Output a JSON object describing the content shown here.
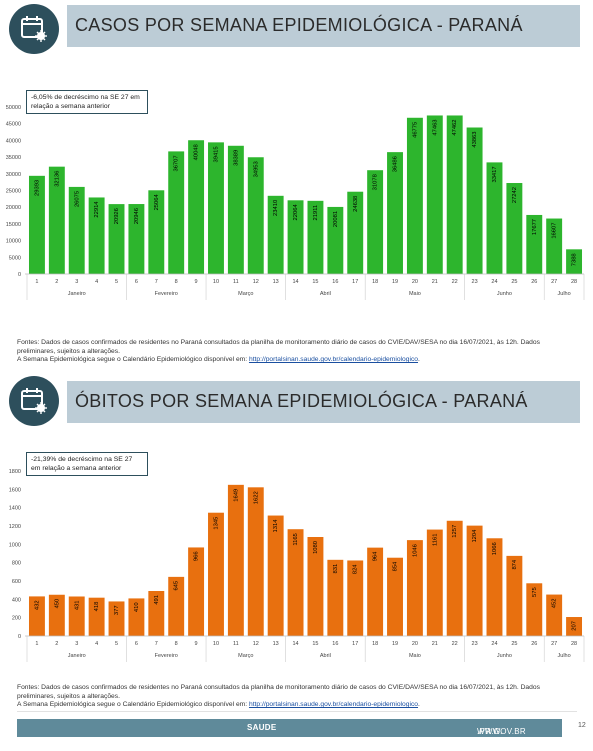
{
  "sections": [
    {
      "title": "CASOS POR SEMANA EPIDEMIOLÓGICA  - PARANÁ",
      "callout": "-6,05% de decréscimo na SE 27 em relação a semana anterior",
      "source": {
        "line1": "Fontes: Dados de casos confirmados de residentes no Paraná consultados da planilha de monitoramento diário de casos do CVIE/DAV/SESA no dia 16/07/2021, às 12h. Dados preliminares, sujeitos a alterações.",
        "line2_prefix": "A Semana Epidemiológica segue o Calendário Epidemiológico disponível em: ",
        "link": "http://portalsinan.saude.gov.br/calendario-epidemiologico",
        "line2_suffix": "."
      }
    },
    {
      "title": "ÓBITOS POR SEMANA EPIDEMIOLÓGICA  - PARANÁ",
      "callout": "-21,39% de decréscimo na SE 27 em relação a semana anterior",
      "source": {
        "line1": "Fontes: Dados de casos confirmados de residentes no Paraná consultados da planilha de monitoramento diário de casos do CVIE/DAV/SESA no dia 16/07/2021, às 12h. Dados preliminares, sujeitos a alterações.",
        "line2_prefix": "A Semana Epidemiológica segue o Calendário Epidemiológico disponível em: ",
        "link": "http://portalsinan.saude.gov.br/calendario-epidemiologico",
        "line2_suffix": "."
      }
    }
  ],
  "chart_data": [
    {
      "type": "bar",
      "categories": [
        "1",
        "2",
        "3",
        "4",
        "5",
        "6",
        "7",
        "8",
        "9",
        "10",
        "11",
        "12",
        "13",
        "14",
        "15",
        "16",
        "17",
        "18",
        "19",
        "20",
        "21",
        "22",
        "23",
        "24",
        "25",
        "26",
        "27",
        "28"
      ],
      "values": [
        29393,
        32136,
        26075,
        22914,
        20926,
        20946,
        25064,
        36707,
        40048,
        39415,
        38389,
        34953,
        23410,
        22064,
        21911,
        20081,
        24638,
        31078,
        36486,
        46775,
        47463,
        47462,
        43863,
        33417,
        27242,
        17677,
        16607,
        7388
      ],
      "months": [
        {
          "label": "Janeiro",
          "from": 1,
          "to": 5
        },
        {
          "label": "Fevereiro",
          "from": 6,
          "to": 9
        },
        {
          "label": "Março",
          "from": 10,
          "to": 13
        },
        {
          "label": "Abril",
          "from": 14,
          "to": 17
        },
        {
          "label": "Maio",
          "from": 18,
          "to": 22
        },
        {
          "label": "Junho",
          "from": 23,
          "to": 26
        },
        {
          "label": "Julho",
          "from": 27,
          "to": 28
        }
      ],
      "ylim": [
        0,
        50000
      ],
      "yticks": [
        0,
        5000,
        10000,
        15000,
        20000,
        25000,
        30000,
        35000,
        40000,
        45000,
        50000
      ],
      "color": "#2db52d",
      "grid": false,
      "xlabel": "",
      "ylabel": "",
      "title": ""
    },
    {
      "type": "bar",
      "categories": [
        "1",
        "2",
        "3",
        "4",
        "5",
        "6",
        "7",
        "8",
        "9",
        "10",
        "11",
        "12",
        "13",
        "14",
        "15",
        "16",
        "17",
        "18",
        "19",
        "20",
        "21",
        "22",
        "23",
        "24",
        "25",
        "26",
        "27",
        "28"
      ],
      "values": [
        432,
        450,
        431,
        418,
        377,
        410,
        491,
        645,
        966,
        1345,
        1649,
        1622,
        1314,
        1165,
        1080,
        831,
        824,
        964,
        854,
        1046,
        1161,
        1257,
        1204,
        1066,
        874,
        575,
        452,
        207
      ],
      "months": [
        {
          "label": "Janeiro",
          "from": 1,
          "to": 5
        },
        {
          "label": "Fevereiro",
          "from": 6,
          "to": 9
        },
        {
          "label": "Março",
          "from": 10,
          "to": 13
        },
        {
          "label": "Abril",
          "from": 14,
          "to": 17
        },
        {
          "label": "Maio",
          "from": 18,
          "to": 22
        },
        {
          "label": "Junho",
          "from": 23,
          "to": 26
        },
        {
          "label": "Julho",
          "from": 27,
          "to": 28
        }
      ],
      "ylim": [
        0,
        1800
      ],
      "yticks": [
        0,
        200,
        400,
        600,
        800,
        1000,
        1200,
        1400,
        1600,
        1800
      ],
      "color": "#e8700f",
      "grid": false,
      "xlabel": "",
      "ylabel": "",
      "title": ""
    }
  ],
  "footer": {
    "site_prefix": "WWW.",
    "site_bold": "SAUDE",
    "site_suffix": ".PR.GOV.BR",
    "page": "12"
  }
}
